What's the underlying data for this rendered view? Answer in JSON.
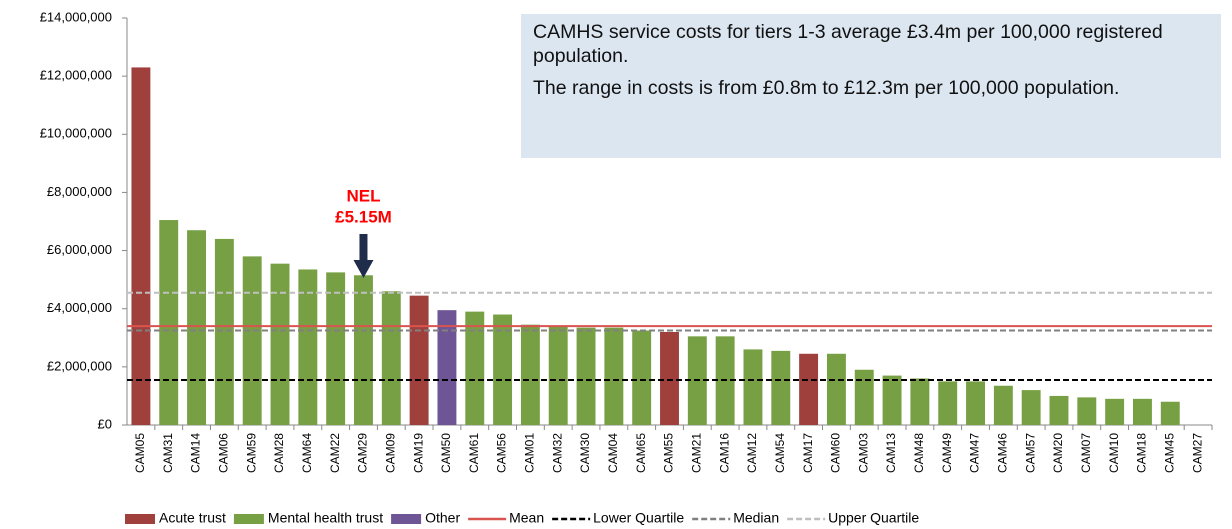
{
  "chart_data": {
    "type": "bar",
    "categories": [
      "CAM05",
      "CAM31",
      "CAM14",
      "CAM06",
      "CAM59",
      "CAM28",
      "CAM64",
      "CAM22",
      "CAM29",
      "CAM09",
      "CAM19",
      "CAM50",
      "CAM61",
      "CAM56",
      "CAM01",
      "CAM32",
      "CAM30",
      "CAM04",
      "CAM65",
      "CAM55",
      "CAM21",
      "CAM16",
      "CAM12",
      "CAM54",
      "CAM17",
      "CAM60",
      "CAM03",
      "CAM13",
      "CAM48",
      "CAM49",
      "CAM47",
      "CAM46",
      "CAM57",
      "CAM20",
      "CAM07",
      "CAM10",
      "CAM18",
      "CAM45",
      "CAM27"
    ],
    "series": [
      {
        "name": "Acute trust",
        "color": "#a0403d",
        "values": [
          12300000,
          null,
          null,
          null,
          null,
          null,
          null,
          null,
          null,
          null,
          4450000,
          null,
          null,
          null,
          null,
          null,
          null,
          null,
          null,
          3200000,
          null,
          null,
          null,
          null,
          2450000,
          null,
          null,
          null,
          null,
          null,
          null,
          null,
          null,
          null,
          null,
          null,
          null,
          null,
          null
        ]
      },
      {
        "name": "Mental health trust",
        "color": "#77a044",
        "values": [
          null,
          7050000,
          6700000,
          6400000,
          5800000,
          5550000,
          5350000,
          5250000,
          5150000,
          4600000,
          null,
          null,
          3900000,
          3800000,
          3450000,
          3400000,
          3350000,
          3350000,
          3250000,
          null,
          3050000,
          3050000,
          2600000,
          2550000,
          null,
          2450000,
          1900000,
          1700000,
          1600000,
          1500000,
          1500000,
          1350000,
          1200000,
          1000000,
          950000,
          900000,
          900000,
          800000,
          null
        ]
      },
      {
        "name": "Other",
        "color": "#6e5596",
        "values": [
          null,
          null,
          null,
          null,
          null,
          null,
          null,
          null,
          null,
          null,
          null,
          3950000,
          null,
          null,
          null,
          null,
          null,
          null,
          null,
          null,
          null,
          null,
          null,
          null,
          null,
          null,
          null,
          null,
          null,
          null,
          null,
          null,
          null,
          null,
          null,
          null,
          null,
          null,
          null
        ]
      }
    ],
    "reference_lines": [
      {
        "name": "Mean",
        "value": 3400000,
        "color": "#d9534f",
        "style": "solid"
      },
      {
        "name": "Lower Quartile",
        "value": 1550000,
        "color": "#000000",
        "style": "dashed"
      },
      {
        "name": "Median",
        "value": 3250000,
        "color": "#808080",
        "style": "dashed"
      },
      {
        "name": "Upper Quartile",
        "value": 4550000,
        "color": "#bfbfbf",
        "style": "dashed"
      }
    ],
    "ylim": [
      0,
      14000000
    ],
    "yticks": [
      {
        "value": 0,
        "label": "£0"
      },
      {
        "value": 2000000,
        "label": "£2,000,000"
      },
      {
        "value": 4000000,
        "label": "£4,000,000"
      },
      {
        "value": 6000000,
        "label": "£6,000,000"
      },
      {
        "value": 8000000,
        "label": "£8,000,000"
      },
      {
        "value": 10000000,
        "label": "£10,000,000"
      },
      {
        "value": 12000000,
        "label": "£12,000,000"
      },
      {
        "value": 14000000,
        "label": "£14,000,000"
      }
    ],
    "grid": false,
    "legend": "bottom",
    "annotations": {
      "note": [
        "CAMHS service costs for tiers 1-3 average £3.4m per 100,000 registered population.",
        "The range in costs is from £0.8m to £12.3m per 100,000 population."
      ],
      "callout": [
        "NEL",
        "£5.15M"
      ]
    }
  }
}
